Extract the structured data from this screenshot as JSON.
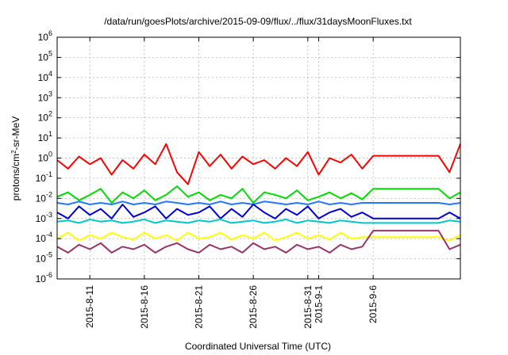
{
  "chart_data": {
    "type": "line",
    "title": "/data/run/goesPlots/archive/2015-09-09/flux/../flux/31daysMoonFluxes.txt",
    "xlabel": "Coordinated Universal Time (UTC)",
    "ylabel": {
      "base": "protons/cm",
      "sup": "2",
      "rest": "-sr-MeV"
    },
    "yscale": "log",
    "ylim": [
      1e-06,
      1000000.0
    ],
    "xlim": [
      "2015-08-08",
      "2015-09-14"
    ],
    "grid": true,
    "yticks": [
      {
        "value": 1e-06,
        "base": "10",
        "exp": "-6"
      },
      {
        "value": 1e-05,
        "base": "10",
        "exp": "-5"
      },
      {
        "value": 0.0001,
        "base": "10",
        "exp": "-4"
      },
      {
        "value": 0.001,
        "base": "10",
        "exp": "-3"
      },
      {
        "value": 0.01,
        "base": "10",
        "exp": "-2"
      },
      {
        "value": 0.1,
        "base": "10",
        "exp": "-1"
      },
      {
        "value": 1,
        "base": "10",
        "exp": "0"
      },
      {
        "value": 10.0,
        "base": "10",
        "exp": "1"
      },
      {
        "value": 100.0,
        "base": "10",
        "exp": "2"
      },
      {
        "value": 1000.0,
        "base": "10",
        "exp": "3"
      },
      {
        "value": 10000.0,
        "base": "10",
        "exp": "4"
      },
      {
        "value": 100000.0,
        "base": "10",
        "exp": "5"
      },
      {
        "value": 1000000.0,
        "base": "10",
        "exp": "6"
      }
    ],
    "xticks": [
      {
        "date": "2015-08-11",
        "label": "2015-8-11"
      },
      {
        "date": "2015-08-16",
        "label": "2015-8-16"
      },
      {
        "date": "2015-08-21",
        "label": "2015-8-21"
      },
      {
        "date": "2015-08-26",
        "label": "2015-8-26"
      },
      {
        "date": "2015-08-31",
        "label": "2015-8-31"
      },
      {
        "date": "2015-09-01",
        "label": "2015-9-1"
      },
      {
        "date": "2015-09-06",
        "label": "2015-9-6"
      }
    ],
    "series": [
      {
        "color": "#ff0000",
        "x": [
          "2015-08-08",
          "2015-08-09",
          "2015-08-10",
          "2015-08-11",
          "2015-08-12",
          "2015-08-13",
          "2015-08-14",
          "2015-08-15",
          "2015-08-16",
          "2015-08-17",
          "2015-08-18",
          "2015-08-19",
          "2015-08-20",
          "2015-08-21",
          "2015-08-22",
          "2015-08-23",
          "2015-08-24",
          "2015-08-25",
          "2015-08-26",
          "2015-08-27",
          "2015-08-28",
          "2015-08-29",
          "2015-08-30",
          "2015-08-31",
          "2015-09-01",
          "2015-09-02",
          "2015-09-03",
          "2015-09-04",
          "2015-09-05",
          "2015-09-06",
          "2015-09-07",
          "2015-09-08",
          "2015-09-09",
          "2015-09-10",
          "2015-09-11",
          "2015-09-12",
          "2015-09-13",
          "2015-09-14"
        ],
        "y": [
          0.8,
          0.3,
          1.2,
          0.5,
          1.0,
          0.15,
          0.8,
          0.3,
          1.5,
          0.5,
          5,
          0.2,
          0.05,
          2,
          0.4,
          1.5,
          0.3,
          1.2,
          0.5,
          0.8,
          0.3,
          1.0,
          0.4,
          2,
          0.15,
          1.0,
          0.6,
          1.5,
          0.3,
          1.3,
          1.3,
          1.3,
          1.3,
          1.3,
          1.3,
          1.3,
          0.2,
          5
        ]
      },
      {
        "color": "#00dd00",
        "x": [
          "2015-08-08",
          "2015-08-09",
          "2015-08-10",
          "2015-08-11",
          "2015-08-12",
          "2015-08-13",
          "2015-08-14",
          "2015-08-15",
          "2015-08-16",
          "2015-08-17",
          "2015-08-18",
          "2015-08-19",
          "2015-08-20",
          "2015-08-21",
          "2015-08-22",
          "2015-08-23",
          "2015-08-24",
          "2015-08-25",
          "2015-08-26",
          "2015-08-27",
          "2015-08-28",
          "2015-08-29",
          "2015-08-30",
          "2015-08-31",
          "2015-09-01",
          "2015-09-02",
          "2015-09-03",
          "2015-09-04",
          "2015-09-05",
          "2015-09-06",
          "2015-09-07",
          "2015-09-08",
          "2015-09-09",
          "2015-09-10",
          "2015-09-11",
          "2015-09-12",
          "2015-09-13",
          "2015-09-14"
        ],
        "y": [
          0.012,
          0.02,
          0.008,
          0.015,
          0.03,
          0.006,
          0.02,
          0.01,
          0.025,
          0.008,
          0.015,
          0.04,
          0.012,
          0.02,
          0.008,
          0.015,
          0.01,
          0.03,
          0.006,
          0.02,
          0.015,
          0.01,
          0.025,
          0.008,
          0.012,
          0.02,
          0.01,
          0.018,
          0.009,
          0.03,
          0.03,
          0.03,
          0.03,
          0.03,
          0.03,
          0.03,
          0.01,
          0.02
        ]
      },
      {
        "color": "#2277ff",
        "x": [
          "2015-08-08",
          "2015-08-09",
          "2015-08-10",
          "2015-08-11",
          "2015-08-12",
          "2015-08-13",
          "2015-08-14",
          "2015-08-15",
          "2015-08-16",
          "2015-08-17",
          "2015-08-18",
          "2015-08-19",
          "2015-08-20",
          "2015-08-21",
          "2015-08-22",
          "2015-08-23",
          "2015-08-24",
          "2015-08-25",
          "2015-08-26",
          "2015-08-27",
          "2015-08-28",
          "2015-08-29",
          "2015-08-30",
          "2015-08-31",
          "2015-09-01",
          "2015-09-02",
          "2015-09-03",
          "2015-09-04",
          "2015-09-05",
          "2015-09-06",
          "2015-09-07",
          "2015-09-08",
          "2015-09-09",
          "2015-09-10",
          "2015-09-11",
          "2015-09-12",
          "2015-09-13",
          "2015-09-14"
        ],
        "y": [
          0.006,
          0.005,
          0.007,
          0.005,
          0.006,
          0.005,
          0.007,
          0.005,
          0.006,
          0.005,
          0.007,
          0.006,
          0.005,
          0.006,
          0.005,
          0.007,
          0.005,
          0.006,
          0.005,
          0.007,
          0.006,
          0.005,
          0.006,
          0.005,
          0.007,
          0.005,
          0.006,
          0.005,
          0.006,
          0.006,
          0.006,
          0.006,
          0.006,
          0.006,
          0.006,
          0.006,
          0.005,
          0.006
        ]
      },
      {
        "color": "#0000dd",
        "x": [
          "2015-08-08",
          "2015-08-09",
          "2015-08-10",
          "2015-08-11",
          "2015-08-12",
          "2015-08-13",
          "2015-08-14",
          "2015-08-15",
          "2015-08-16",
          "2015-08-17",
          "2015-08-18",
          "2015-08-19",
          "2015-08-20",
          "2015-08-21",
          "2015-08-22",
          "2015-08-23",
          "2015-08-24",
          "2015-08-25",
          "2015-08-26",
          "2015-08-27",
          "2015-08-28",
          "2015-08-29",
          "2015-08-30",
          "2015-08-31",
          "2015-09-01",
          "2015-09-02",
          "2015-09-03",
          "2015-09-04",
          "2015-09-05",
          "2015-09-06",
          "2015-09-07",
          "2015-09-08",
          "2015-09-09",
          "2015-09-10",
          "2015-09-11",
          "2015-09-12",
          "2015-09-13",
          "2015-09-14"
        ],
        "y": [
          0.002,
          0.001,
          0.004,
          0.0015,
          0.003,
          0.001,
          0.005,
          0.0012,
          0.002,
          0.004,
          0.001,
          0.003,
          0.0015,
          0.002,
          0.004,
          0.001,
          0.003,
          0.0012,
          0.005,
          0.002,
          0.001,
          0.003,
          0.0015,
          0.004,
          0.001,
          0.002,
          0.003,
          0.0012,
          0.002,
          0.001,
          0.001,
          0.001,
          0.001,
          0.001,
          0.001,
          0.001,
          0.002,
          0.001
        ]
      },
      {
        "color": "#00c8c8",
        "x": [
          "2015-08-08",
          "2015-08-09",
          "2015-08-10",
          "2015-08-11",
          "2015-08-12",
          "2015-08-13",
          "2015-08-14",
          "2015-08-15",
          "2015-08-16",
          "2015-08-17",
          "2015-08-18",
          "2015-08-19",
          "2015-08-20",
          "2015-08-21",
          "2015-08-22",
          "2015-08-23",
          "2015-08-24",
          "2015-08-25",
          "2015-08-26",
          "2015-08-27",
          "2015-08-28",
          "2015-08-29",
          "2015-08-30",
          "2015-08-31",
          "2015-09-01",
          "2015-09-02",
          "2015-09-03",
          "2015-09-04",
          "2015-09-05",
          "2015-09-06",
          "2015-09-07",
          "2015-09-08",
          "2015-09-09",
          "2015-09-10",
          "2015-09-11",
          "2015-09-12",
          "2015-09-13",
          "2015-09-14"
        ],
        "y": [
          0.0007,
          0.0008,
          0.0006,
          0.0009,
          0.0007,
          0.0008,
          0.0006,
          0.0007,
          0.0009,
          0.0006,
          0.0008,
          0.0007,
          0.0006,
          0.0008,
          0.0007,
          0.0009,
          0.0006,
          0.0007,
          0.0008,
          0.0006,
          0.0007,
          0.0009,
          0.0006,
          0.0008,
          0.0007,
          0.0006,
          0.0008,
          0.0007,
          0.0006,
          0.0006,
          0.0006,
          0.0006,
          0.0006,
          0.0006,
          0.0006,
          0.0006,
          0.0008,
          0.0007
        ]
      },
      {
        "color": "#ffff00",
        "x": [
          "2015-08-08",
          "2015-08-09",
          "2015-08-10",
          "2015-08-11",
          "2015-08-12",
          "2015-08-13",
          "2015-08-14",
          "2015-08-15",
          "2015-08-16",
          "2015-08-17",
          "2015-08-18",
          "2015-08-19",
          "2015-08-20",
          "2015-08-21",
          "2015-08-22",
          "2015-08-23",
          "2015-08-24",
          "2015-08-25",
          "2015-08-26",
          "2015-08-27",
          "2015-08-28",
          "2015-08-29",
          "2015-08-30",
          "2015-08-31",
          "2015-09-01",
          "2015-09-02",
          "2015-09-03",
          "2015-09-04",
          "2015-09-05",
          "2015-09-06",
          "2015-09-07",
          "2015-09-08",
          "2015-09-09",
          "2015-09-10",
          "2015-09-11",
          "2015-09-12",
          "2015-09-13",
          "2015-09-14"
        ],
        "y": [
          0.0001,
          0.0002,
          8e-05,
          0.00015,
          0.0001,
          0.0002,
          0.00012,
          9e-05,
          0.0002,
          0.0001,
          0.00015,
          8e-05,
          0.0002,
          0.0001,
          0.00012,
          0.0002,
          9e-05,
          0.00015,
          0.0001,
          0.0002,
          8e-05,
          0.00012,
          0.0002,
          0.0001,
          0.00015,
          9e-05,
          0.0002,
          0.0001,
          0.00012,
          0.00012,
          0.00012,
          0.00012,
          0.00012,
          0.00012,
          0.00012,
          0.00012,
          8e-05,
          0.00015
        ]
      },
      {
        "color": "#993366",
        "x": [
          "2015-08-08",
          "2015-08-09",
          "2015-08-10",
          "2015-08-11",
          "2015-08-12",
          "2015-08-13",
          "2015-08-14",
          "2015-08-15",
          "2015-08-16",
          "2015-08-17",
          "2015-08-18",
          "2015-08-19",
          "2015-08-20",
          "2015-08-21",
          "2015-08-22",
          "2015-08-23",
          "2015-08-24",
          "2015-08-25",
          "2015-08-26",
          "2015-08-27",
          "2015-08-28",
          "2015-08-29",
          "2015-08-30",
          "2015-08-31",
          "2015-09-01",
          "2015-09-02",
          "2015-09-03",
          "2015-09-04",
          "2015-09-05",
          "2015-09-06",
          "2015-09-07",
          "2015-09-08",
          "2015-09-09",
          "2015-09-10",
          "2015-09-11",
          "2015-09-12",
          "2015-09-13",
          "2015-09-14"
        ],
        "y": [
          4e-05,
          2e-05,
          5e-05,
          3e-05,
          6e-05,
          2e-05,
          4e-05,
          3e-05,
          5e-05,
          2e-05,
          4e-05,
          6e-05,
          3e-05,
          2e-05,
          5e-05,
          3e-05,
          4e-05,
          2e-05,
          6e-05,
          3e-05,
          4e-05,
          2e-05,
          5e-05,
          3e-05,
          4e-05,
          2e-05,
          5e-05,
          3e-05,
          4e-05,
          0.00025,
          0.00025,
          0.00025,
          0.00025,
          0.00025,
          0.00025,
          0.00025,
          3e-05,
          5e-05
        ]
      }
    ]
  }
}
